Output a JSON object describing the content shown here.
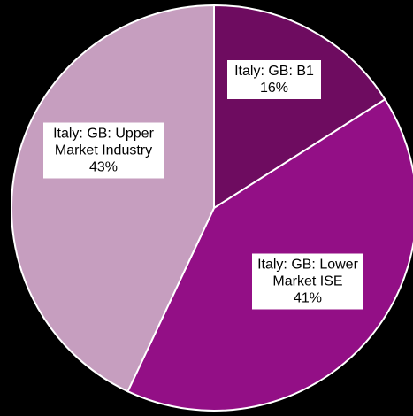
{
  "chart_data": {
    "type": "pie",
    "categories": [
      "Italy: GB: B1",
      "Italy: GB: Lower Market ISE",
      "Italy: GB: Upper Market Industry"
    ],
    "values": [
      16,
      41,
      43
    ],
    "value_labels": [
      "16%",
      "41%",
      "43%"
    ],
    "colors": [
      "#6e0c60",
      "#930f86",
      "#c69ebf"
    ]
  }
}
